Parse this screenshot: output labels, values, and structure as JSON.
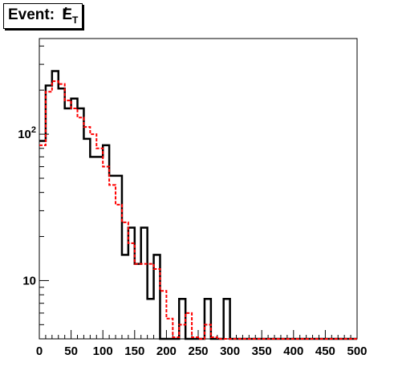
{
  "title": {
    "prefix": "Event: ",
    "symbol": "E",
    "slash": "/",
    "subscript": "T"
  },
  "chart_data": {
    "type": "step-histogram",
    "xlim": [
      0,
      500
    ],
    "ylim": [
      4,
      450
    ],
    "yscale": "log",
    "bin_width": 10,
    "xticks": [
      0,
      50,
      100,
      150,
      200,
      250,
      300,
      350,
      400,
      450,
      500
    ],
    "yticks": [
      {
        "value": 10,
        "label": "10",
        "sup": ""
      },
      {
        "value": 100,
        "label": "10",
        "sup": "2"
      }
    ],
    "series": [
      {
        "style": "solid",
        "color": "#000000",
        "values": [
          90,
          215,
          270,
          205,
          150,
          175,
          150,
          93,
          70,
          70,
          84,
          52,
          52,
          15,
          23,
          13,
          23,
          7.5,
          15,
          0,
          0,
          0,
          7.5,
          0,
          0,
          0,
          7.5,
          0,
          0,
          7.5,
          0,
          0,
          0,
          0,
          0,
          0,
          0,
          0,
          0,
          0,
          0,
          0,
          0,
          0,
          0,
          0,
          0,
          0,
          0,
          0
        ]
      },
      {
        "style": "dashed",
        "color": "#ff0000",
        "values": [
          84,
          195,
          230,
          220,
          170,
          150,
          130,
          112,
          100,
          80,
          60,
          45,
          33,
          25,
          18,
          13,
          13,
          13,
          12,
          8.5,
          5.5,
          4.1,
          5,
          6,
          4.1,
          3.2,
          5,
          4.1,
          0,
          0,
          0,
          0,
          0,
          0,
          0,
          0,
          0,
          0,
          0,
          0,
          0,
          0,
          0,
          0,
          0,
          0,
          0,
          0,
          0,
          0
        ]
      }
    ]
  }
}
